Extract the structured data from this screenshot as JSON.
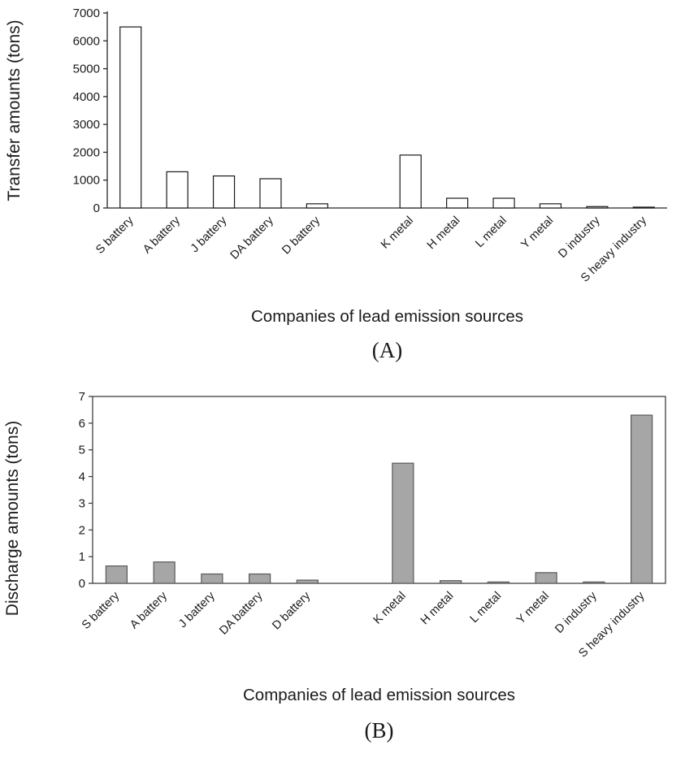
{
  "page": {
    "background": "#ffffff",
    "text_color": "#1a1a1a"
  },
  "chart_data": [
    {
      "id": "A",
      "type": "bar",
      "title": "",
      "ylabel": "Transfer amounts (tons)",
      "xlabel": "Companies of lead emission sources",
      "caption": "(A)",
      "categories": [
        "S battery",
        "A battery",
        "J battery",
        "DA battery",
        "D battery",
        "K metal",
        "H metal",
        "L metal",
        "Y metal",
        "D industry",
        "S heavy industry"
      ],
      "values": [
        6500,
        1300,
        1150,
        1050,
        150,
        1900,
        350,
        350,
        150,
        50,
        30
      ],
      "ylim": [
        0,
        7000
      ],
      "ytick_step": 1000,
      "gap_after_index": 4,
      "grid": false,
      "legend": "none",
      "boxed": false,
      "bar_fill": "#ffffff",
      "bar_stroke": "#1a1a1a",
      "axis_color": "#262626"
    },
    {
      "id": "B",
      "type": "bar",
      "title": "",
      "ylabel": "Discharge amounts (tons)",
      "xlabel": "Companies of lead emission sources",
      "caption": "(B)",
      "categories": [
        "S battery",
        "A battery",
        "J battery",
        "DA battery",
        "D battery",
        "K metal",
        "H metal",
        "L metal",
        "Y metal",
        "D industry",
        "S heavy industry"
      ],
      "values": [
        0.65,
        0.8,
        0.35,
        0.35,
        0.12,
        4.5,
        0.1,
        0.05,
        0.4,
        0.05,
        6.3
      ],
      "ylim": [
        0,
        7
      ],
      "ytick_step": 1,
      "gap_after_index": 4,
      "grid": false,
      "legend": "none",
      "boxed": true,
      "bar_fill": "#a6a6a6",
      "bar_stroke": "#595959",
      "axis_color": "#404040"
    }
  ]
}
